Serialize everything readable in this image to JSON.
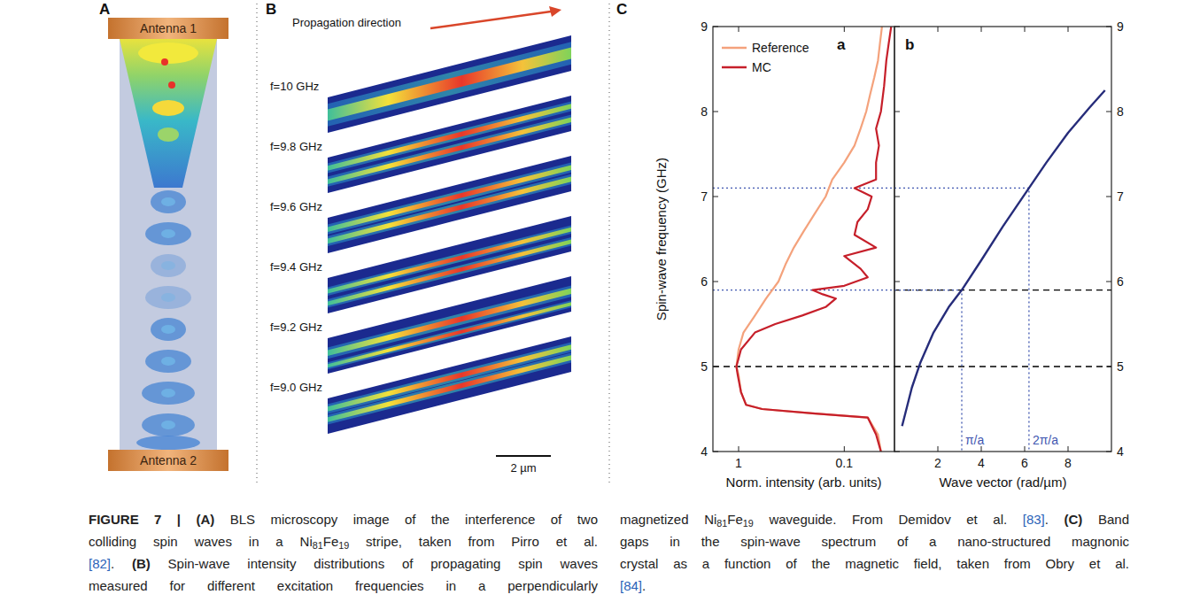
{
  "panel_a": {
    "letter": "A",
    "antenna_top": "Antenna 1",
    "antenna_bottom": "Antenna 2"
  },
  "panel_b": {
    "letter": "B",
    "arrow_label": "Propagation direction",
    "frequencies": [
      "f=10 GHz",
      "f=9.8 GHz",
      "f=9.6 GHz",
      "f=9.4 GHz",
      "f=9.2 GHz",
      "f=9.0 GHz"
    ],
    "scale_bar": "2 µm"
  },
  "panel_c": {
    "letter": "C"
  },
  "chart_data": [
    {
      "type": "line",
      "panel_letter": "a",
      "x_label": "Norm. intensity (arb. units)",
      "y_label": "Spin-wave frequency (GHz)",
      "log": "x",
      "xlim": [
        1.75,
        0.0335
      ],
      "xticks": [
        1,
        0.1
      ],
      "ylim": [
        4,
        9
      ],
      "yticks": [
        4,
        5,
        6,
        7,
        8,
        9
      ],
      "legend": "top-left",
      "series": [
        {
          "name": "Reference",
          "color": "#f4a27c",
          "x": [
            0.045,
            0.048,
            0.06,
            0.2,
            0.6,
            0.85,
            0.95,
            1.0,
            1.05,
            1.0,
            0.9,
            0.7,
            0.55,
            0.42,
            0.36,
            0.3,
            0.24,
            0.19,
            0.15,
            0.13,
            0.1,
            0.08,
            0.07,
            0.062,
            0.057,
            0.052,
            0.048,
            0.046,
            0.044
          ],
          "values": [
            4.0,
            4.2,
            4.4,
            4.45,
            4.5,
            4.55,
            4.7,
            4.9,
            5.0,
            5.2,
            5.4,
            5.6,
            5.8,
            6.0,
            6.2,
            6.4,
            6.6,
            6.8,
            7.0,
            7.2,
            7.4,
            7.6,
            7.8,
            8.0,
            8.2,
            8.4,
            8.6,
            8.8,
            9.0
          ]
        },
        {
          "name": "MC",
          "color": "#c61f2a",
          "x": [
            0.045,
            0.05,
            0.06,
            0.2,
            0.6,
            0.85,
            0.95,
            1.02,
            1.05,
            0.95,
            0.7,
            0.45,
            0.25,
            0.15,
            0.12,
            0.16,
            0.2,
            0.1,
            0.06,
            0.07,
            0.1,
            0.05,
            0.08,
            0.075,
            0.06,
            0.055,
            0.08,
            0.05,
            0.05,
            0.047,
            0.05,
            0.045,
            0.042,
            0.04,
            0.038,
            0.036
          ],
          "values": [
            4.0,
            4.2,
            4.4,
            4.45,
            4.5,
            4.55,
            4.7,
            4.9,
            5.0,
            5.2,
            5.4,
            5.5,
            5.6,
            5.7,
            5.8,
            5.85,
            5.9,
            5.95,
            6.05,
            6.15,
            6.3,
            6.4,
            6.55,
            6.7,
            6.85,
            7.0,
            7.1,
            7.2,
            7.4,
            7.6,
            7.8,
            8.0,
            8.3,
            8.6,
            8.8,
            9.0
          ]
        }
      ],
      "lines": [
        {
          "y": 7.1,
          "line_style": "dotted",
          "color": "#3f56b0"
        },
        {
          "y": 5.9,
          "line_style": "dotted",
          "color": "#3f56b0"
        },
        {
          "y": 5.0,
          "line_style": "dashed",
          "color": "#000000"
        }
      ]
    },
    {
      "type": "line",
      "panel_letter": "b",
      "x_label": "Wave vector (rad/µm)",
      "xlim": [
        0,
        10
      ],
      "xticks": [
        2,
        4,
        6,
        8
      ],
      "ylim": [
        4,
        9
      ],
      "yticks": [
        4,
        5,
        6,
        7,
        8,
        9
      ],
      "series": [
        {
          "color": "#262c7a",
          "x": [
            0.35,
            0.5,
            0.8,
            1.2,
            1.8,
            2.5,
            3.1,
            4.0,
            5.0,
            6.2,
            7.0,
            8.0,
            9.0,
            9.7
          ],
          "values": [
            4.3,
            4.45,
            4.75,
            5.05,
            5.4,
            5.7,
            5.9,
            6.25,
            6.65,
            7.1,
            7.4,
            7.75,
            8.05,
            8.25
          ]
        }
      ],
      "lines": [
        {
          "y": 5.9,
          "line_style": "dashed",
          "color": "#000000"
        },
        {
          "y": 5.0,
          "line_style": "dashed",
          "color": "#000000"
        }
      ],
      "band_edges": [
        {
          "x": 3.1,
          "y": 5.9,
          "label": "π/a",
          "color": "#3f56b0"
        },
        {
          "x": 6.2,
          "y": 7.1,
          "label": "2π/a",
          "color": "#3f56b0"
        }
      ]
    }
  ],
  "caption": {
    "left": [
      [
        {
          "text": "FIGURE 7 | (A)",
          "style": "bold"
        },
        {
          "text": " BLS microscopy image of the interference of two"
        }
      ],
      [
        {
          "text": "colliding spin waves in a Ni"
        },
        {
          "text": "81",
          "style": "sub"
        },
        {
          "text": "Fe"
        },
        {
          "text": "19",
          "style": "sub"
        },
        {
          "text": " stripe, taken from Pirro et al."
        }
      ],
      [
        {
          "text": "[82]",
          "style": "link"
        },
        {
          "text": ". "
        },
        {
          "text": "(B)",
          "style": "bold"
        },
        {
          "text": " Spin-wave intensity distributions of propagating spin waves"
        }
      ],
      [
        {
          "text": "measured for different excitation frequencies in a perpendicularly"
        }
      ]
    ],
    "right": [
      [
        {
          "text": "magnetized Ni"
        },
        {
          "text": "81",
          "style": "sub"
        },
        {
          "text": "Fe"
        },
        {
          "text": "19",
          "style": "sub"
        },
        {
          "text": " waveguide. From Demidov et al. "
        },
        {
          "text": "[83]",
          "style": "link"
        },
        {
          "text": ". "
        },
        {
          "text": "(C)",
          "style": "bold"
        },
        {
          "text": " Band"
        }
      ],
      [
        {
          "text": "gaps in the spin-wave spectrum of a nano-structured magnonic"
        }
      ],
      [
        {
          "text": "crystal as a function of the magnetic field, taken from Obry et al."
        }
      ],
      [
        {
          "text": "[84]",
          "style": "link"
        },
        {
          "text": "."
        }
      ]
    ]
  }
}
